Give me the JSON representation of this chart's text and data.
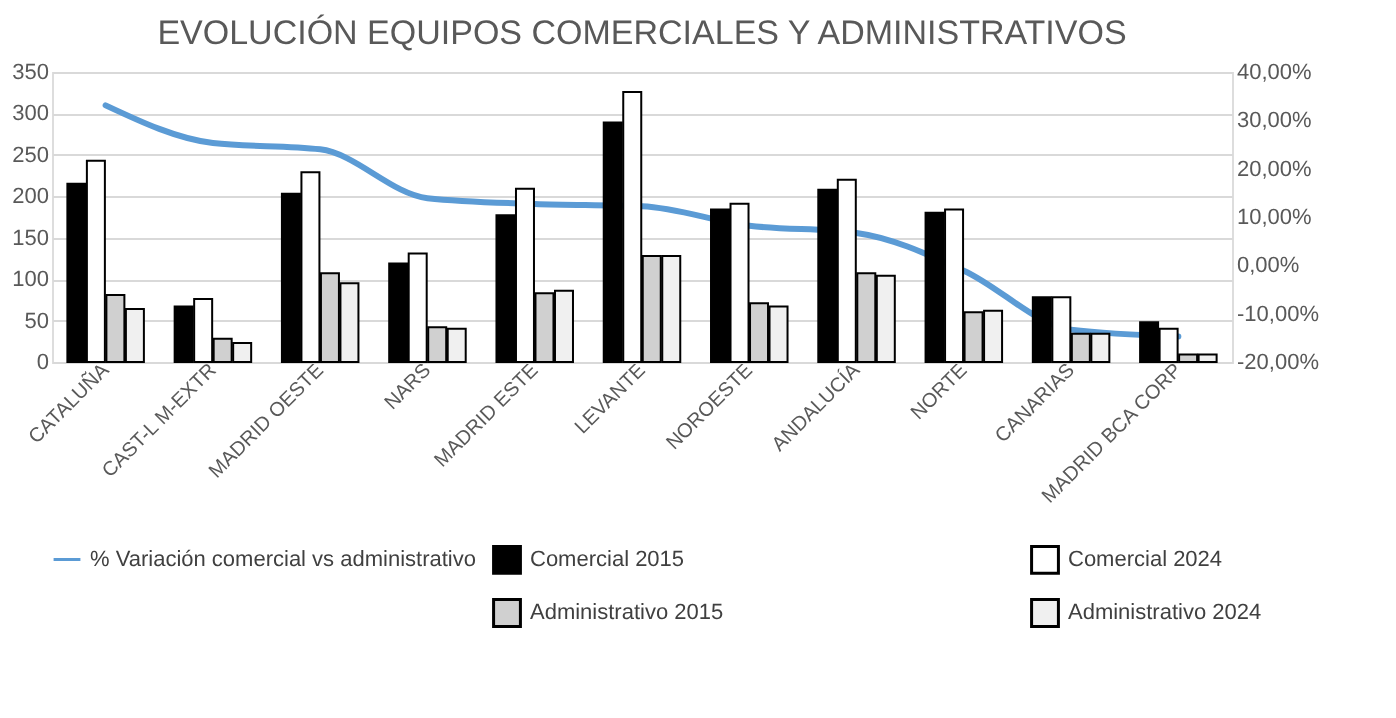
{
  "chart_data": {
    "type": "bar",
    "title": "EVOLUCIÓN EQUIPOS COMERCIALES Y ADMINISTRATIVOS",
    "categories": [
      "CATALUÑA",
      "CAST-L M-EXTR",
      "MADRID OESTE",
      "NARS",
      "MADRID ESTE",
      "LEVANTE",
      "NOROESTE",
      "ANDALUCÍA",
      "NORTE",
      "CANARIAS",
      "MADRID BCA CORP"
    ],
    "series": [
      {
        "name": "Comercial 2015",
        "color": "#000000",
        "values": [
          215,
          67,
          203,
          119,
          177,
          289,
          184,
          208,
          180,
          78,
          48
        ]
      },
      {
        "name": "Comercial 2024",
        "color": "#ffffff",
        "values": [
          243,
          76,
          229,
          131,
          209,
          326,
          191,
          220,
          184,
          78,
          40
        ]
      },
      {
        "name": "Administrativo 2015",
        "color": "#d0d0d0",
        "values": [
          81,
          28,
          107,
          42,
          83,
          128,
          71,
          107,
          60,
          34,
          9
        ]
      },
      {
        "name": "Administrativo 2024",
        "color": "#f0f0f0",
        "values": [
          64,
          23,
          95,
          40,
          86,
          128,
          67,
          104,
          62,
          34,
          9
        ]
      },
      {
        "name": "% Variación comercial vs administrativo",
        "type": "line",
        "axis": "y2",
        "color": "#5b9bd5",
        "values": [
          33.1,
          25.3,
          24.0,
          13.9,
          12.7,
          12.2,
          8.2,
          6.7,
          -1.1,
          -13.3,
          -14.7
        ]
      }
    ],
    "ylim": [
      0,
      350
    ],
    "yticks": [
      0,
      50,
      100,
      150,
      200,
      250,
      300,
      350
    ],
    "y2lim": [
      -20,
      40
    ],
    "y2ticks": [
      {
        "value": -20,
        "label": "-20,00%"
      },
      {
        "value": -10,
        "label": "-10,00%"
      },
      {
        "value": 0,
        "label": "0,00%"
      },
      {
        "value": 10,
        "label": "10,00%"
      },
      {
        "value": 20,
        "label": "20,00%"
      },
      {
        "value": 30,
        "label": "30,00%"
      },
      {
        "value": 40,
        "label": "40,00%"
      }
    ],
    "grid": "y",
    "legend": "bottom"
  }
}
